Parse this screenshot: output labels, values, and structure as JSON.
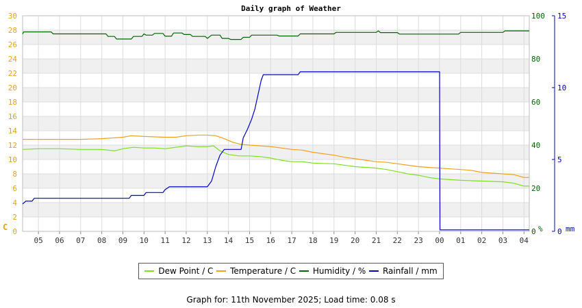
{
  "chart_data": {
    "type": "line",
    "title": "Daily graph of Weather",
    "x_tick_labels": [
      "05",
      "06",
      "07",
      "08",
      "09",
      "10",
      "11",
      "12",
      "13",
      "14",
      "15",
      "16",
      "17",
      "18",
      "19",
      "20",
      "21",
      "22",
      "23",
      "00",
      "01",
      "02",
      "03",
      "04"
    ],
    "x_range_hours": [
      4.25,
      28.25
    ],
    "left_axis": {
      "unit": "C",
      "range": [
        0,
        30
      ],
      "ticks": [
        0,
        2,
        4,
        6,
        8,
        10,
        12,
        14,
        16,
        18,
        20,
        22,
        24,
        26,
        28,
        30
      ],
      "color": "#e8a317"
    },
    "humidity_axis": {
      "unit": "%",
      "range": [
        0,
        100
      ],
      "ticks": [
        0,
        20,
        40,
        60,
        80,
        100
      ],
      "color": "#006400"
    },
    "rain_axis": {
      "unit": "mm",
      "range": [
        0,
        15
      ],
      "ticks": [
        0,
        5,
        10,
        15
      ],
      "color": "#0000c8"
    },
    "grid": true,
    "legend_position": "bottom",
    "series": [
      {
        "name": "Dew Point / C",
        "color": "#7ee01c",
        "axis": "left",
        "points": [
          [
            4.25,
            11.4
          ],
          [
            5,
            11.5
          ],
          [
            6,
            11.5
          ],
          [
            7,
            11.4
          ],
          [
            8,
            11.4
          ],
          [
            8.6,
            11.2
          ],
          [
            9,
            11.5
          ],
          [
            9.5,
            11.7
          ],
          [
            10,
            11.6
          ],
          [
            10.5,
            11.6
          ],
          [
            11,
            11.5
          ],
          [
            11.5,
            11.7
          ],
          [
            12,
            11.9
          ],
          [
            12.5,
            11.8
          ],
          [
            13,
            11.8
          ],
          [
            13.3,
            11.9
          ],
          [
            13.6,
            11.2
          ],
          [
            14,
            10.7
          ],
          [
            14.5,
            10.5
          ],
          [
            15,
            10.5
          ],
          [
            15.5,
            10.4
          ],
          [
            16,
            10.2
          ],
          [
            16.5,
            9.9
          ],
          [
            17,
            9.7
          ],
          [
            17.5,
            9.7
          ],
          [
            18,
            9.5
          ],
          [
            19,
            9.4
          ],
          [
            20,
            9.0
          ],
          [
            21,
            8.8
          ],
          [
            21.5,
            8.6
          ],
          [
            22,
            8.3
          ],
          [
            22.5,
            8.0
          ],
          [
            23,
            7.8
          ],
          [
            23.5,
            7.5
          ],
          [
            24,
            7.3
          ],
          [
            24.5,
            7.2
          ],
          [
            25,
            7.1
          ],
          [
            26,
            7.0
          ],
          [
            27,
            6.9
          ],
          [
            27.5,
            6.7
          ],
          [
            28,
            6.3
          ],
          [
            28.25,
            6.3
          ]
        ]
      },
      {
        "name": "Temperature / C",
        "color": "#f0a01e",
        "axis": "left",
        "points": [
          [
            4.25,
            12.8
          ],
          [
            5,
            12.8
          ],
          [
            6,
            12.8
          ],
          [
            7,
            12.8
          ],
          [
            8,
            12.9
          ],
          [
            9,
            13.1
          ],
          [
            9.4,
            13.3
          ],
          [
            10,
            13.2
          ],
          [
            11,
            13.1
          ],
          [
            11.5,
            13.1
          ],
          [
            12,
            13.3
          ],
          [
            12.6,
            13.4
          ],
          [
            13,
            13.4
          ],
          [
            13.4,
            13.3
          ],
          [
            13.8,
            12.9
          ],
          [
            14.2,
            12.4
          ],
          [
            14.6,
            12.1
          ],
          [
            15,
            12.0
          ],
          [
            15.5,
            11.9
          ],
          [
            16,
            11.8
          ],
          [
            16.5,
            11.6
          ],
          [
            17,
            11.4
          ],
          [
            17.5,
            11.3
          ],
          [
            18,
            11.0
          ],
          [
            18.5,
            10.8
          ],
          [
            19,
            10.6
          ],
          [
            19.5,
            10.3
          ],
          [
            20,
            10.1
          ],
          [
            20.5,
            9.9
          ],
          [
            21,
            9.7
          ],
          [
            21.5,
            9.6
          ],
          [
            22,
            9.4
          ],
          [
            22.5,
            9.2
          ],
          [
            23,
            9.0
          ],
          [
            23.5,
            8.9
          ],
          [
            24,
            8.8
          ],
          [
            24.5,
            8.7
          ],
          [
            25,
            8.6
          ],
          [
            25.5,
            8.5
          ],
          [
            26,
            8.2
          ],
          [
            26.5,
            8.1
          ],
          [
            27,
            8.0
          ],
          [
            27.5,
            7.9
          ],
          [
            28,
            7.5
          ],
          [
            28.25,
            7.5
          ]
        ]
      },
      {
        "name": "Humidity / %",
        "color": "#006400",
        "axis": "humidity",
        "points": [
          [
            4.25,
            91.5
          ],
          [
            4.3,
            92.5
          ],
          [
            5,
            92.5
          ],
          [
            5.6,
            92.5
          ],
          [
            5.7,
            91.6
          ],
          [
            7,
            91.6
          ],
          [
            8.2,
            91.6
          ],
          [
            8.3,
            90.4
          ],
          [
            8.6,
            90.4
          ],
          [
            8.7,
            89.2
          ],
          [
            9.4,
            89.2
          ],
          [
            9.5,
            90.4
          ],
          [
            9.9,
            90.4
          ],
          [
            10,
            91.6
          ],
          [
            10.1,
            91.0
          ],
          [
            10.4,
            91.0
          ],
          [
            10.5,
            91.8
          ],
          [
            10.9,
            91.8
          ],
          [
            11,
            90.5
          ],
          [
            11.3,
            90.5
          ],
          [
            11.4,
            92.0
          ],
          [
            11.8,
            92.0
          ],
          [
            11.9,
            91.3
          ],
          [
            12.2,
            91.3
          ],
          [
            12.3,
            90.4
          ],
          [
            12.9,
            90.4
          ],
          [
            13,
            89.5
          ],
          [
            13.2,
            91.0
          ],
          [
            13.6,
            91.0
          ],
          [
            13.7,
            89.5
          ],
          [
            14,
            89.5
          ],
          [
            14.1,
            89.0
          ],
          [
            14.6,
            89.0
          ],
          [
            14.7,
            90.0
          ],
          [
            15,
            90.0
          ],
          [
            15.1,
            91.0
          ],
          [
            16.3,
            91.0
          ],
          [
            16.4,
            90.6
          ],
          [
            17.3,
            90.6
          ],
          [
            17.4,
            91.6
          ],
          [
            19,
            91.6
          ],
          [
            19.1,
            92.3
          ],
          [
            20,
            92.3
          ],
          [
            21,
            92.3
          ],
          [
            21.1,
            93.0
          ],
          [
            21.2,
            92.2
          ],
          [
            22,
            92.2
          ],
          [
            22.1,
            91.5
          ],
          [
            24,
            91.5
          ],
          [
            24.9,
            91.5
          ],
          [
            25,
            92.3
          ],
          [
            26,
            92.3
          ],
          [
            27,
            92.3
          ],
          [
            27.1,
            93.0
          ],
          [
            28.25,
            93.0
          ]
        ]
      },
      {
        "name": "Rainfall / mm",
        "color": "#0000c8",
        "axis": "rain",
        "points": [
          [
            4.25,
            1.9
          ],
          [
            4.4,
            2.1
          ],
          [
            4.7,
            2.1
          ],
          [
            4.8,
            2.3
          ],
          [
            8,
            2.3
          ],
          [
            9.3,
            2.3
          ],
          [
            9.4,
            2.5
          ],
          [
            10,
            2.5
          ],
          [
            10.1,
            2.7
          ],
          [
            10.9,
            2.7
          ],
          [
            11,
            2.9
          ],
          [
            11.2,
            3.1
          ],
          [
            13,
            3.1
          ],
          [
            13.2,
            3.5
          ],
          [
            13.4,
            4.5
          ],
          [
            13.6,
            5.3
          ],
          [
            13.8,
            5.7
          ],
          [
            14.6,
            5.7
          ],
          [
            14.7,
            6.5
          ],
          [
            14.9,
            7.1
          ],
          [
            15.1,
            7.8
          ],
          [
            15.25,
            8.5
          ],
          [
            15.4,
            9.5
          ],
          [
            15.55,
            10.5
          ],
          [
            15.65,
            10.9
          ],
          [
            16,
            10.9
          ],
          [
            17.3,
            10.9
          ],
          [
            17.4,
            11.1
          ],
          [
            19,
            11.1
          ],
          [
            20,
            11.1
          ],
          [
            22,
            11.1
          ],
          [
            24,
            11.1
          ],
          [
            24.02,
            0.1
          ],
          [
            28.25,
            0.1
          ]
        ]
      }
    ]
  },
  "footer": {
    "text": "Graph for: 11th November 2025; Load time: 0.08 s"
  }
}
